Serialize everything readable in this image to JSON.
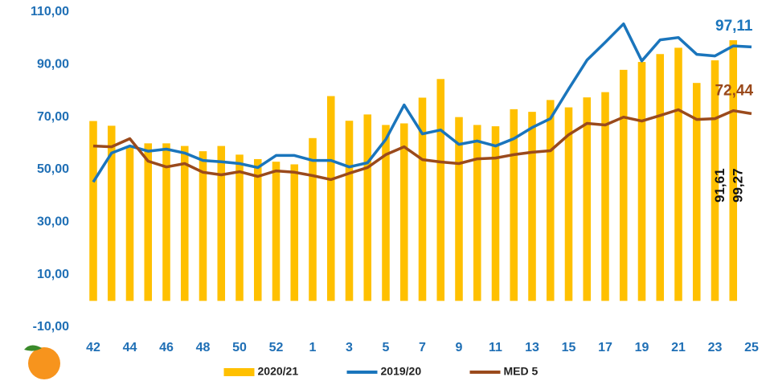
{
  "chart_data": {
    "type": "bar",
    "categories": [
      "42",
      null,
      "44",
      null,
      "46",
      null,
      "48",
      null,
      "50",
      null,
      "52",
      null,
      "1",
      null,
      "3",
      null,
      "5",
      null,
      "7",
      null,
      "9",
      null,
      "11",
      null,
      "13",
      null,
      "15",
      null,
      "17",
      null,
      "19",
      null,
      "21",
      null,
      "23",
      null,
      "25"
    ],
    "series": [
      {
        "name": "2020/21",
        "type": "bar",
        "color": "#ffc000",
        "values": [
          68.5,
          66.7,
          59,
          60,
          60,
          59,
          57,
          59,
          55.7,
          54,
          53,
          52,
          62,
          78,
          68.6,
          71,
          67,
          67.6,
          77.4,
          84.5,
          70,
          67,
          66.5,
          73,
          72,
          76.5,
          73.7,
          77.5,
          79.5,
          88,
          91,
          94,
          96.4,
          83,
          91.61,
          99.27,
          null
        ],
        "value_labels": [
          null,
          null,
          null,
          null,
          null,
          null,
          null,
          null,
          null,
          null,
          null,
          null,
          null,
          null,
          null,
          null,
          null,
          null,
          null,
          null,
          null,
          null,
          null,
          null,
          null,
          null,
          null,
          null,
          null,
          null,
          null,
          null,
          null,
          null,
          "91,61",
          "99,27",
          null
        ]
      },
      {
        "name": "2019/20",
        "type": "line",
        "color": "#1a75bc",
        "values": [
          45.3,
          56.3,
          59,
          57,
          57.8,
          56.3,
          53.5,
          53,
          52.3,
          50.8,
          55.4,
          55.4,
          53.5,
          53.5,
          51,
          52.6,
          61.5,
          74.6,
          63.6,
          65.1,
          59.6,
          60.9,
          59,
          61.8,
          66,
          69.4,
          80.7,
          91.7,
          98.5,
          105.5,
          91.4,
          99.4,
          100.3,
          93.9,
          93.3,
          97.11,
          96.7
        ],
        "value_labels": [
          null,
          null,
          null,
          null,
          null,
          null,
          null,
          null,
          null,
          null,
          null,
          null,
          null,
          null,
          null,
          null,
          null,
          null,
          null,
          null,
          null,
          null,
          null,
          null,
          null,
          null,
          null,
          null,
          null,
          null,
          null,
          null,
          null,
          null,
          null,
          "97,11",
          null
        ]
      },
      {
        "name": "MED 5",
        "type": "line",
        "color": "#9a4a1c",
        "values": [
          59,
          58.7,
          61.8,
          53.2,
          51,
          52.3,
          49,
          48,
          49.2,
          47.4,
          49.5,
          49,
          47.7,
          46.2,
          48.6,
          50.8,
          55.7,
          58.7,
          53.8,
          52.9,
          52.3,
          54.1,
          54.4,
          55.7,
          56.6,
          57.2,
          63.3,
          67.6,
          67,
          70,
          68.5,
          70.6,
          72.8,
          69.1,
          69.4,
          72.44,
          71.3
        ],
        "value_labels": [
          null,
          null,
          null,
          null,
          null,
          null,
          null,
          null,
          null,
          null,
          null,
          null,
          null,
          null,
          null,
          null,
          null,
          null,
          null,
          null,
          null,
          null,
          null,
          null,
          null,
          null,
          null,
          null,
          null,
          null,
          null,
          null,
          null,
          null,
          null,
          "72,44",
          null
        ]
      }
    ],
    "ylim": [
      -10,
      110
    ],
    "yticks": [
      {
        "value": -10,
        "label": "-10,00"
      },
      {
        "value": 10,
        "label": "10,00"
      },
      {
        "value": 30,
        "label": "30,00"
      },
      {
        "value": 50,
        "label": "50,00"
      },
      {
        "value": 70,
        "label": "70,00"
      },
      {
        "value": 90,
        "label": "90,00"
      },
      {
        "value": 110,
        "label": "110,00"
      }
    ],
    "legend": "bottom"
  }
}
